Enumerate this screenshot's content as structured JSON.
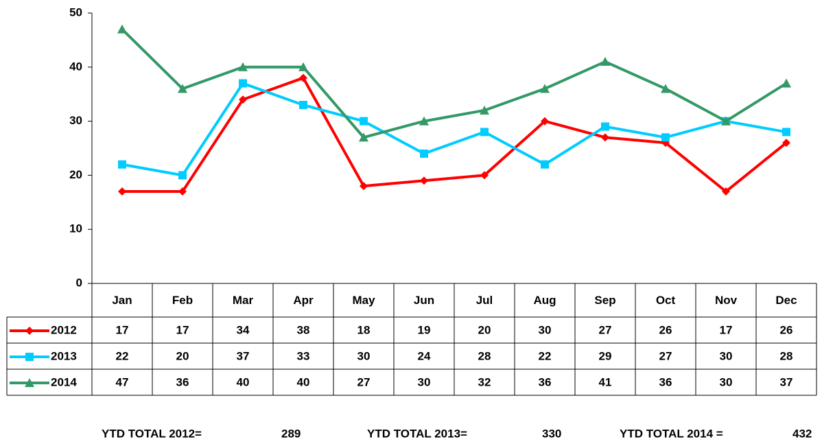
{
  "chart_data": {
    "type": "line",
    "categories": [
      "Jan",
      "Feb",
      "Mar",
      "Apr",
      "May",
      "Jun",
      "Jul",
      "Aug",
      "Sep",
      "Oct",
      "Nov",
      "Dec"
    ],
    "series": [
      {
        "name": "2012",
        "color": "#ff0000",
        "marker": "diamond",
        "values": [
          17,
          17,
          34,
          38,
          18,
          19,
          20,
          30,
          27,
          26,
          17,
          26
        ]
      },
      {
        "name": "2013",
        "color": "#00ccff",
        "marker": "square",
        "values": [
          22,
          20,
          37,
          33,
          30,
          24,
          28,
          22,
          29,
          27,
          30,
          28
        ]
      },
      {
        "name": "2014",
        "color": "#339966",
        "marker": "triangle",
        "values": [
          47,
          36,
          40,
          40,
          27,
          30,
          32,
          36,
          41,
          36,
          30,
          37
        ]
      }
    ],
    "ylim": [
      0,
      50
    ],
    "yticks": [
      0,
      10,
      20,
      30,
      40,
      50
    ],
    "grid": false,
    "annotations": [
      {
        "label": "YTD TOTAL 2012=",
        "value": 289
      },
      {
        "label": "YTD TOTAL 2013=",
        "value": 330
      },
      {
        "label": "YTD TOTAL 2014 =",
        "value": 432
      }
    ]
  }
}
